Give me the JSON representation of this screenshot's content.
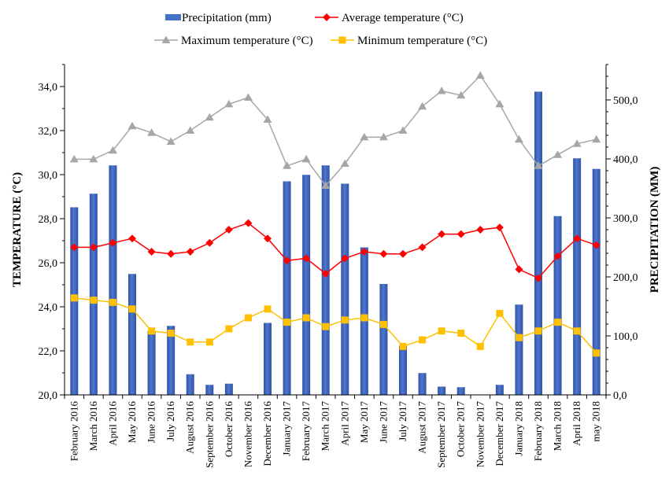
{
  "chart_data": {
    "type": "bar",
    "title": "",
    "categories": [
      "February 2016",
      "March 2016",
      "April 2016",
      "May 2016",
      "June 2016",
      "July 2016",
      "August 2016",
      "September 2016",
      "October 2016",
      "November 2016",
      "December 2016",
      "January 2017",
      "February 2017",
      "March 2017",
      "April 2017",
      "May 2017",
      "June 2017",
      "July 2017",
      "August 2017",
      "September 2017",
      "October 2017",
      "November 2017",
      "December 2017",
      "January 2018",
      "February 2018",
      "March 2018",
      "April 2018",
      "may 2018"
    ],
    "y_left": {
      "label": "TEMPERATURE (°C)",
      "min": 20,
      "max": 35,
      "ticks": [
        "20,0",
        "22,0",
        "24,0",
        "26,0",
        "28,0",
        "30,0",
        "32,0",
        "34,0"
      ]
    },
    "y_right": {
      "label": "PRECIPITATION (MM)",
      "min": 0,
      "max": 560,
      "ticks": [
        "0,0",
        "100,0",
        "200,0",
        "300,0",
        "400,0",
        "500,0"
      ]
    },
    "legend_position": "top",
    "grid": false,
    "series": [
      {
        "name": "Precipitation (mm)",
        "type": "bar",
        "axis": "right",
        "color": "#4472C4",
        "values": [
          318,
          341,
          389,
          205,
          108,
          117,
          35,
          17,
          19,
          0,
          122,
          362,
          373,
          389,
          358,
          250,
          188,
          83,
          37,
          14,
          13,
          0,
          17,
          153,
          514,
          303,
          401,
          383
        ]
      },
      {
        "name": "Average temperature (°C)",
        "type": "line",
        "axis": "left",
        "color": "#FF0000",
        "marker": "diamond",
        "values": [
          26.7,
          26.7,
          26.9,
          27.1,
          26.5,
          26.4,
          26.5,
          26.9,
          27.5,
          27.8,
          27.1,
          26.1,
          26.2,
          25.5,
          26.2,
          26.5,
          26.4,
          26.4,
          26.7,
          27.3,
          27.3,
          27.5,
          27.6,
          25.7,
          25.3,
          26.3,
          27.1,
          26.8
        ]
      },
      {
        "name": "Maximum temperature (°C)",
        "type": "line",
        "axis": "left",
        "color": "#A6A6A6",
        "marker": "triangle",
        "values": [
          30.7,
          30.7,
          31.1,
          32.2,
          31.9,
          31.5,
          32.0,
          32.6,
          33.2,
          33.5,
          32.5,
          30.4,
          30.7,
          29.5,
          30.5,
          31.7,
          31.7,
          32.0,
          33.1,
          33.8,
          33.6,
          34.5,
          33.2,
          31.6,
          30.4,
          30.9,
          31.4,
          31.6
        ]
      },
      {
        "name": "Minimum temperature (°C)",
        "type": "line",
        "axis": "left",
        "color": "#FFC000",
        "marker": "square",
        "values": [
          24.4,
          24.3,
          24.2,
          23.9,
          22.9,
          22.8,
          22.4,
          22.4,
          23.0,
          23.5,
          23.9,
          23.3,
          23.5,
          23.1,
          23.4,
          23.5,
          23.2,
          22.2,
          22.5,
          22.9,
          22.8,
          22.2,
          23.7,
          22.6,
          22.9,
          23.3,
          22.9,
          21.9
        ]
      }
    ]
  }
}
